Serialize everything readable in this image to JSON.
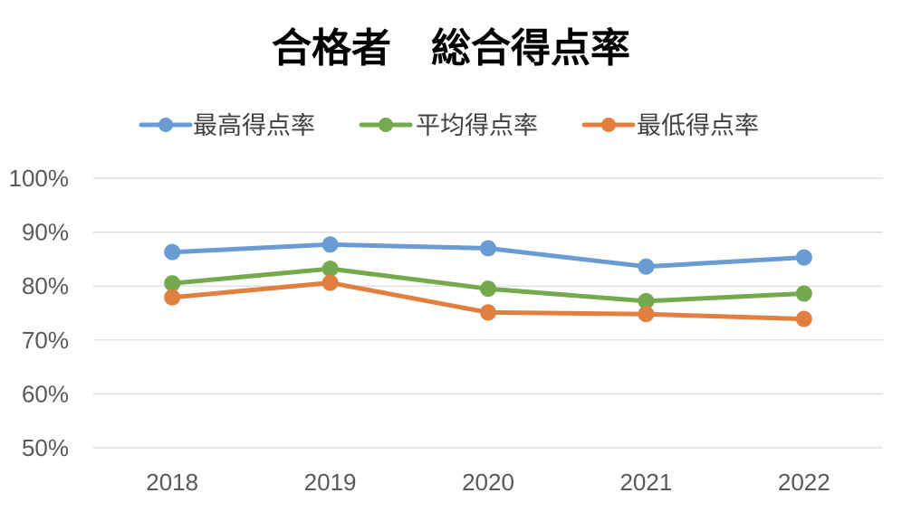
{
  "chart_data": {
    "type": "line",
    "title": "合格者　総合得点率",
    "xlabel": "",
    "ylabel": "",
    "categories": [
      "2018",
      "2019",
      "2020",
      "2021",
      "2022"
    ],
    "y_tick_labels": [
      "100%",
      "90%",
      "80%",
      "70%",
      "60%",
      "50%"
    ],
    "ylim": [
      50,
      100
    ],
    "y_unit": "%",
    "grid": true,
    "legend_position": "top",
    "series": [
      {
        "name": "最高得点率",
        "color": "#6a9cd3",
        "values": [
          86.3,
          87.7,
          87.0,
          83.6,
          85.3
        ]
      },
      {
        "name": "平均得点率",
        "color": "#75a94e",
        "values": [
          80.5,
          83.2,
          79.5,
          77.2,
          78.6
        ]
      },
      {
        "name": "最低得点率",
        "color": "#e07f3f",
        "values": [
          77.9,
          80.6,
          75.1,
          74.8,
          73.9
        ]
      }
    ]
  }
}
